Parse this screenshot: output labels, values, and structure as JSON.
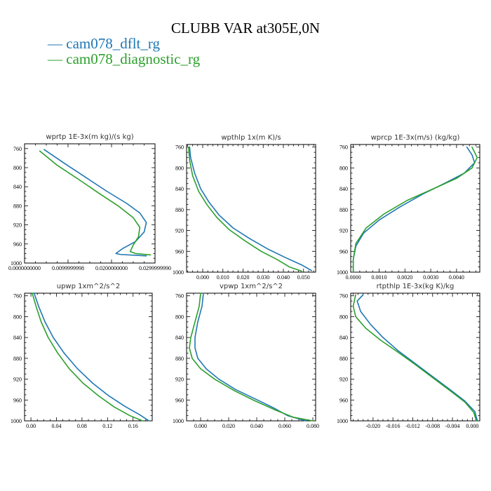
{
  "figure": {
    "title": "CLUBB VAR at305E,0N",
    "legend": [
      {
        "label": "cam078_dflt_rg",
        "color": "#1f77b4"
      },
      {
        "label": "cam078_diagnostic_rg",
        "color": "#2ca02c"
      }
    ]
  },
  "chart_data": [
    {
      "type": "line",
      "title": "wprtp  1E-3x(m kg)/(s kg)",
      "xlim": [
        0.0,
        0.03
      ],
      "ylim": [
        1000,
        750
      ],
      "xticks": [
        "0.0000000000",
        "0.0099999998",
        "0.0200000000",
        "0.0299999990"
      ],
      "xtick_values": [
        0.0,
        0.01,
        0.02,
        0.03
      ],
      "yticks": [
        760,
        800,
        840,
        880,
        920,
        960,
        1000
      ],
      "series": [
        {
          "name": "cam078_dflt_rg",
          "color": "#1f77b4",
          "points": [
            [
              0.0045,
              762
            ],
            [
              0.009,
              790
            ],
            [
              0.014,
              820
            ],
            [
              0.019,
              850
            ],
            [
              0.0235,
              875
            ],
            [
              0.0265,
              895
            ],
            [
              0.028,
              915
            ],
            [
              0.0275,
              935
            ],
            [
              0.0255,
              955
            ],
            [
              0.0225,
              970
            ],
            [
              0.021,
              980
            ],
            [
              0.022,
              982
            ],
            [
              0.028,
              985
            ]
          ]
        },
        {
          "name": "cam078_diagnostic_rg",
          "color": "#2ca02c",
          "points": [
            [
              0.0035,
              765
            ],
            [
              0.0075,
              795
            ],
            [
              0.0125,
              825
            ],
            [
              0.017,
              853
            ],
            [
              0.0215,
              880
            ],
            [
              0.025,
              905
            ],
            [
              0.0265,
              925
            ],
            [
              0.0262,
              945
            ],
            [
              0.025,
              962
            ],
            [
              0.0243,
              976
            ],
            [
              0.0255,
              980
            ],
            [
              0.029,
              983
            ]
          ]
        }
      ]
    },
    {
      "type": "line",
      "title": "wpthlp  1x(m K)/s",
      "xlim": [
        -0.008,
        0.056
      ],
      "ylim": [
        1000,
        755
      ],
      "xticks": [
        "0.000",
        "0.010",
        "0.020",
        "0.030",
        "0.040",
        "0.050"
      ],
      "xtick_values": [
        0.0,
        0.01,
        0.02,
        0.03,
        0.04,
        0.05
      ],
      "yticks": [
        760,
        800,
        840,
        880,
        920,
        960,
        1000
      ],
      "series": [
        {
          "name": "cam078_dflt_rg",
          "color": "#1f77b4",
          "points": [
            [
              -0.0065,
              760
            ],
            [
              -0.006,
              780
            ],
            [
              -0.004,
              810
            ],
            [
              -0.001,
              840
            ],
            [
              0.003,
              865
            ],
            [
              0.008,
              890
            ],
            [
              0.015,
              915
            ],
            [
              0.023,
              935
            ],
            [
              0.032,
              955
            ],
            [
              0.041,
              972
            ],
            [
              0.049,
              986
            ],
            [
              0.054,
              997
            ]
          ]
        },
        {
          "name": "cam078_diagnostic_rg",
          "color": "#2ca02c",
          "points": [
            [
              -0.007,
              760
            ],
            [
              -0.0065,
              785
            ],
            [
              -0.005,
              815
            ],
            [
              -0.002,
              845
            ],
            [
              0.002,
              870
            ],
            [
              0.007,
              895
            ],
            [
              0.013,
              918
            ],
            [
              0.021,
              940
            ],
            [
              0.029,
              960
            ],
            [
              0.037,
              976
            ],
            [
              0.043,
              990
            ],
            [
              0.049,
              998
            ]
          ]
        }
      ]
    },
    {
      "type": "line",
      "title": "wprcp  1E-3x(m/s) (kg/kg)",
      "xlim": [
        -0.0001,
        0.0049
      ],
      "ylim": [
        1000,
        755
      ],
      "xticks": [
        "0.0000",
        "0.0010",
        "0.0020",
        "0.0030",
        "0.0040"
      ],
      "xtick_values": [
        0.0,
        0.001,
        0.002,
        0.003,
        0.004
      ],
      "yticks": [
        760,
        800,
        840,
        880,
        920,
        960,
        1000
      ],
      "series": [
        {
          "name": "cam078_dflt_rg",
          "color": "#1f77b4",
          "points": [
            [
              0.0044,
              760
            ],
            [
              0.0046,
              775
            ],
            [
              0.0047,
              790
            ],
            [
              0.0043,
              810
            ],
            [
              0.0036,
              828
            ],
            [
              0.0027,
              850
            ],
            [
              0.0018,
              875
            ],
            [
              0.001,
              900
            ],
            [
              0.0004,
              925
            ],
            [
              0.0001,
              950
            ],
            [
              0.0,
              975
            ],
            [
              0.0,
              1000
            ]
          ]
        },
        {
          "name": "cam078_diagnostic_rg",
          "color": "#2ca02c",
          "points": [
            [
              0.0046,
              760
            ],
            [
              0.0048,
              780
            ],
            [
              0.0046,
              800
            ],
            [
              0.004,
              820
            ],
            [
              0.0031,
              840
            ],
            [
              0.0021,
              862
            ],
            [
              0.0012,
              888
            ],
            [
              0.0005,
              915
            ],
            [
              0.0001,
              945
            ],
            [
              0.0,
              975
            ],
            [
              0.0,
              1000
            ]
          ]
        }
      ]
    },
    {
      "type": "line",
      "title": "upwp  1xm^2/s^2",
      "xlim": [
        -0.01,
        0.19
      ],
      "ylim": [
        1000,
        755
      ],
      "xticks": [
        "0.00",
        "0.04",
        "0.08",
        "0.12",
        "0.16"
      ],
      "xtick_values": [
        0.0,
        0.04,
        0.08,
        0.12,
        0.16
      ],
      "yticks": [
        760,
        800,
        840,
        880,
        920,
        960,
        1000
      ],
      "series": [
        {
          "name": "cam078_dflt_rg",
          "color": "#1f77b4",
          "points": [
            [
              0.005,
              755
            ],
            [
              0.012,
              780
            ],
            [
              0.022,
              810
            ],
            [
              0.035,
              840
            ],
            [
              0.052,
              870
            ],
            [
              0.073,
              900
            ],
            [
              0.097,
              928
            ],
            [
              0.122,
              952
            ],
            [
              0.147,
              972
            ],
            [
              0.17,
              988
            ],
            [
              0.185,
              1000
            ]
          ]
        },
        {
          "name": "cam078_diagnostic_rg",
          "color": "#2ca02c",
          "points": [
            [
              0.002,
              755
            ],
            [
              0.008,
              780
            ],
            [
              0.016,
              810
            ],
            [
              0.027,
              840
            ],
            [
              0.042,
              870
            ],
            [
              0.06,
              900
            ],
            [
              0.082,
              928
            ],
            [
              0.106,
              952
            ],
            [
              0.13,
              973
            ],
            [
              0.155,
              990
            ],
            [
              0.175,
              1000
            ]
          ]
        }
      ]
    },
    {
      "type": "line",
      "title": "vpwp  1xm^2/s^2",
      "xlim": [
        -0.01,
        0.082
      ],
      "ylim": [
        1000,
        755
      ],
      "xticks": [
        "0.000",
        "0.020",
        "0.040",
        "0.060",
        "0.080"
      ],
      "xtick_values": [
        0.0,
        0.02,
        0.04,
        0.06,
        0.08
      ],
      "yticks": [
        760,
        800,
        840,
        880,
        920,
        960,
        1000
      ],
      "series": [
        {
          "name": "cam078_dflt_rg",
          "color": "#1f77b4",
          "points": [
            [
              0.002,
              755
            ],
            [
              0.001,
              780
            ],
            [
              -0.002,
              810
            ],
            [
              -0.004,
              840
            ],
            [
              -0.004,
              860
            ],
            [
              -0.002,
              880
            ],
            [
              0.004,
              900
            ],
            [
              0.013,
              920
            ],
            [
              0.025,
              940
            ],
            [
              0.039,
              958
            ],
            [
              0.052,
              975
            ],
            [
              0.062,
              990
            ],
            [
              0.075,
              1000
            ]
          ]
        },
        {
          "name": "cam078_diagnostic_rg",
          "color": "#2ca02c",
          "points": [
            [
              0.0,
              755
            ],
            [
              -0.001,
              780
            ],
            [
              -0.004,
              810
            ],
            [
              -0.007,
              840
            ],
            [
              -0.008,
              860
            ],
            [
              -0.006,
              880
            ],
            [
              0.0,
              900
            ],
            [
              0.01,
              920
            ],
            [
              0.024,
              942
            ],
            [
              0.039,
              962
            ],
            [
              0.054,
              980
            ],
            [
              0.066,
              993
            ],
            [
              0.08,
              1000
            ]
          ]
        }
      ]
    },
    {
      "type": "line",
      "title": "rtpthlp  1E-3x(kg K)/kg",
      "xlim": [
        -0.0245,
        0.0015
      ],
      "ylim": [
        1000,
        755
      ],
      "xticks": [
        "-0.020",
        "-0.016",
        "-0.012",
        "-0.008",
        "-0.004",
        "0.000"
      ],
      "xtick_values": [
        -0.02,
        -0.016,
        -0.012,
        -0.008,
        -0.004,
        0.0
      ],
      "yticks": [
        760,
        800,
        840,
        880,
        920,
        960,
        1000
      ],
      "series": [
        {
          "name": "cam078_dflt_rg",
          "color": "#1f77b4",
          "points": [
            [
              -0.022,
              758
            ],
            [
              -0.0232,
              770
            ],
            [
              -0.0225,
              790
            ],
            [
              -0.0205,
              815
            ],
            [
              -0.018,
              840
            ],
            [
              -0.015,
              865
            ],
            [
              -0.0115,
              890
            ],
            [
              -0.008,
              915
            ],
            [
              -0.0045,
              940
            ],
            [
              -0.0015,
              962
            ],
            [
              0.0005,
              982
            ],
            [
              0.001,
              1000
            ]
          ]
        },
        {
          "name": "cam078_diagnostic_rg",
          "color": "#2ca02c",
          "points": [
            [
              -0.0235,
              758
            ],
            [
              -0.024,
              780
            ],
            [
              -0.0235,
              800
            ],
            [
              -0.0215,
              822
            ],
            [
              -0.0185,
              845
            ],
            [
              -0.015,
              868
            ],
            [
              -0.0115,
              892
            ],
            [
              -0.008,
              917
            ],
            [
              -0.0045,
              942
            ],
            [
              -0.0015,
              964
            ],
            [
              0.0003,
              984
            ],
            [
              0.0008,
              1000
            ]
          ]
        }
      ]
    }
  ]
}
